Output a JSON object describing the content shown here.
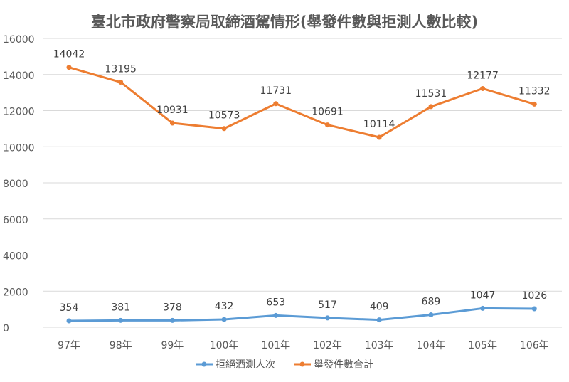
{
  "chart_data": {
    "type": "line",
    "stacked": true,
    "title": "臺北市政府警察局取締酒駕情形(舉發件數與拒測人數比較)",
    "xlabel": "",
    "ylabel": "",
    "categories": [
      "97年",
      "98年",
      "99年",
      "100年",
      "101年",
      "102年",
      "103年",
      "104年",
      "105年",
      "106年"
    ],
    "ylim": [
      0,
      16000
    ],
    "yticks": [
      0,
      2000,
      4000,
      6000,
      8000,
      10000,
      12000,
      14000,
      16000
    ],
    "grid": true,
    "legend": "bottom",
    "series": [
      {
        "name": "拒絕酒測人次",
        "color": "#5b9bd5",
        "values": [
          354,
          381,
          378,
          432,
          653,
          517,
          409,
          689,
          1047,
          1026
        ]
      },
      {
        "name": "舉發件數合計",
        "color": "#ed7d31",
        "values": [
          14042,
          13195,
          10931,
          10573,
          11731,
          10691,
          10114,
          11531,
          12177,
          11332
        ]
      }
    ]
  }
}
